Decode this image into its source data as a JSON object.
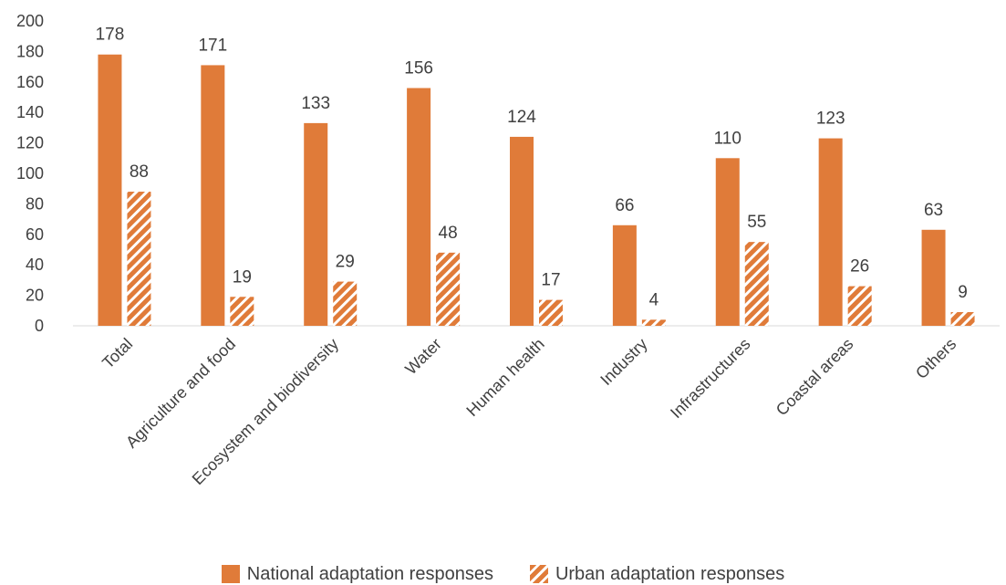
{
  "chart_data": {
    "type": "bar",
    "categories": [
      "Total",
      "Agriculture and food",
      "Ecosystem and biodiversity",
      "Water",
      "Human health",
      "Industry",
      "Infrastructures",
      "Coastal areas",
      "Others"
    ],
    "series": [
      {
        "name": "National adaptation responses",
        "values": [
          178,
          171,
          133,
          156,
          124,
          66,
          110,
          123,
          63
        ],
        "color": "#e07b39",
        "pattern": "solid"
      },
      {
        "name": "Urban adaptation responses",
        "values": [
          88,
          19,
          29,
          48,
          17,
          4,
          55,
          26,
          9
        ],
        "color": "#e07b39",
        "pattern": "hatched"
      }
    ],
    "ylim": [
      0,
      200
    ],
    "yticks": [
      0,
      20,
      40,
      60,
      80,
      100,
      120,
      140,
      160,
      180,
      200
    ],
    "grid": false,
    "legend_position": "bottom",
    "data_labels": true
  }
}
